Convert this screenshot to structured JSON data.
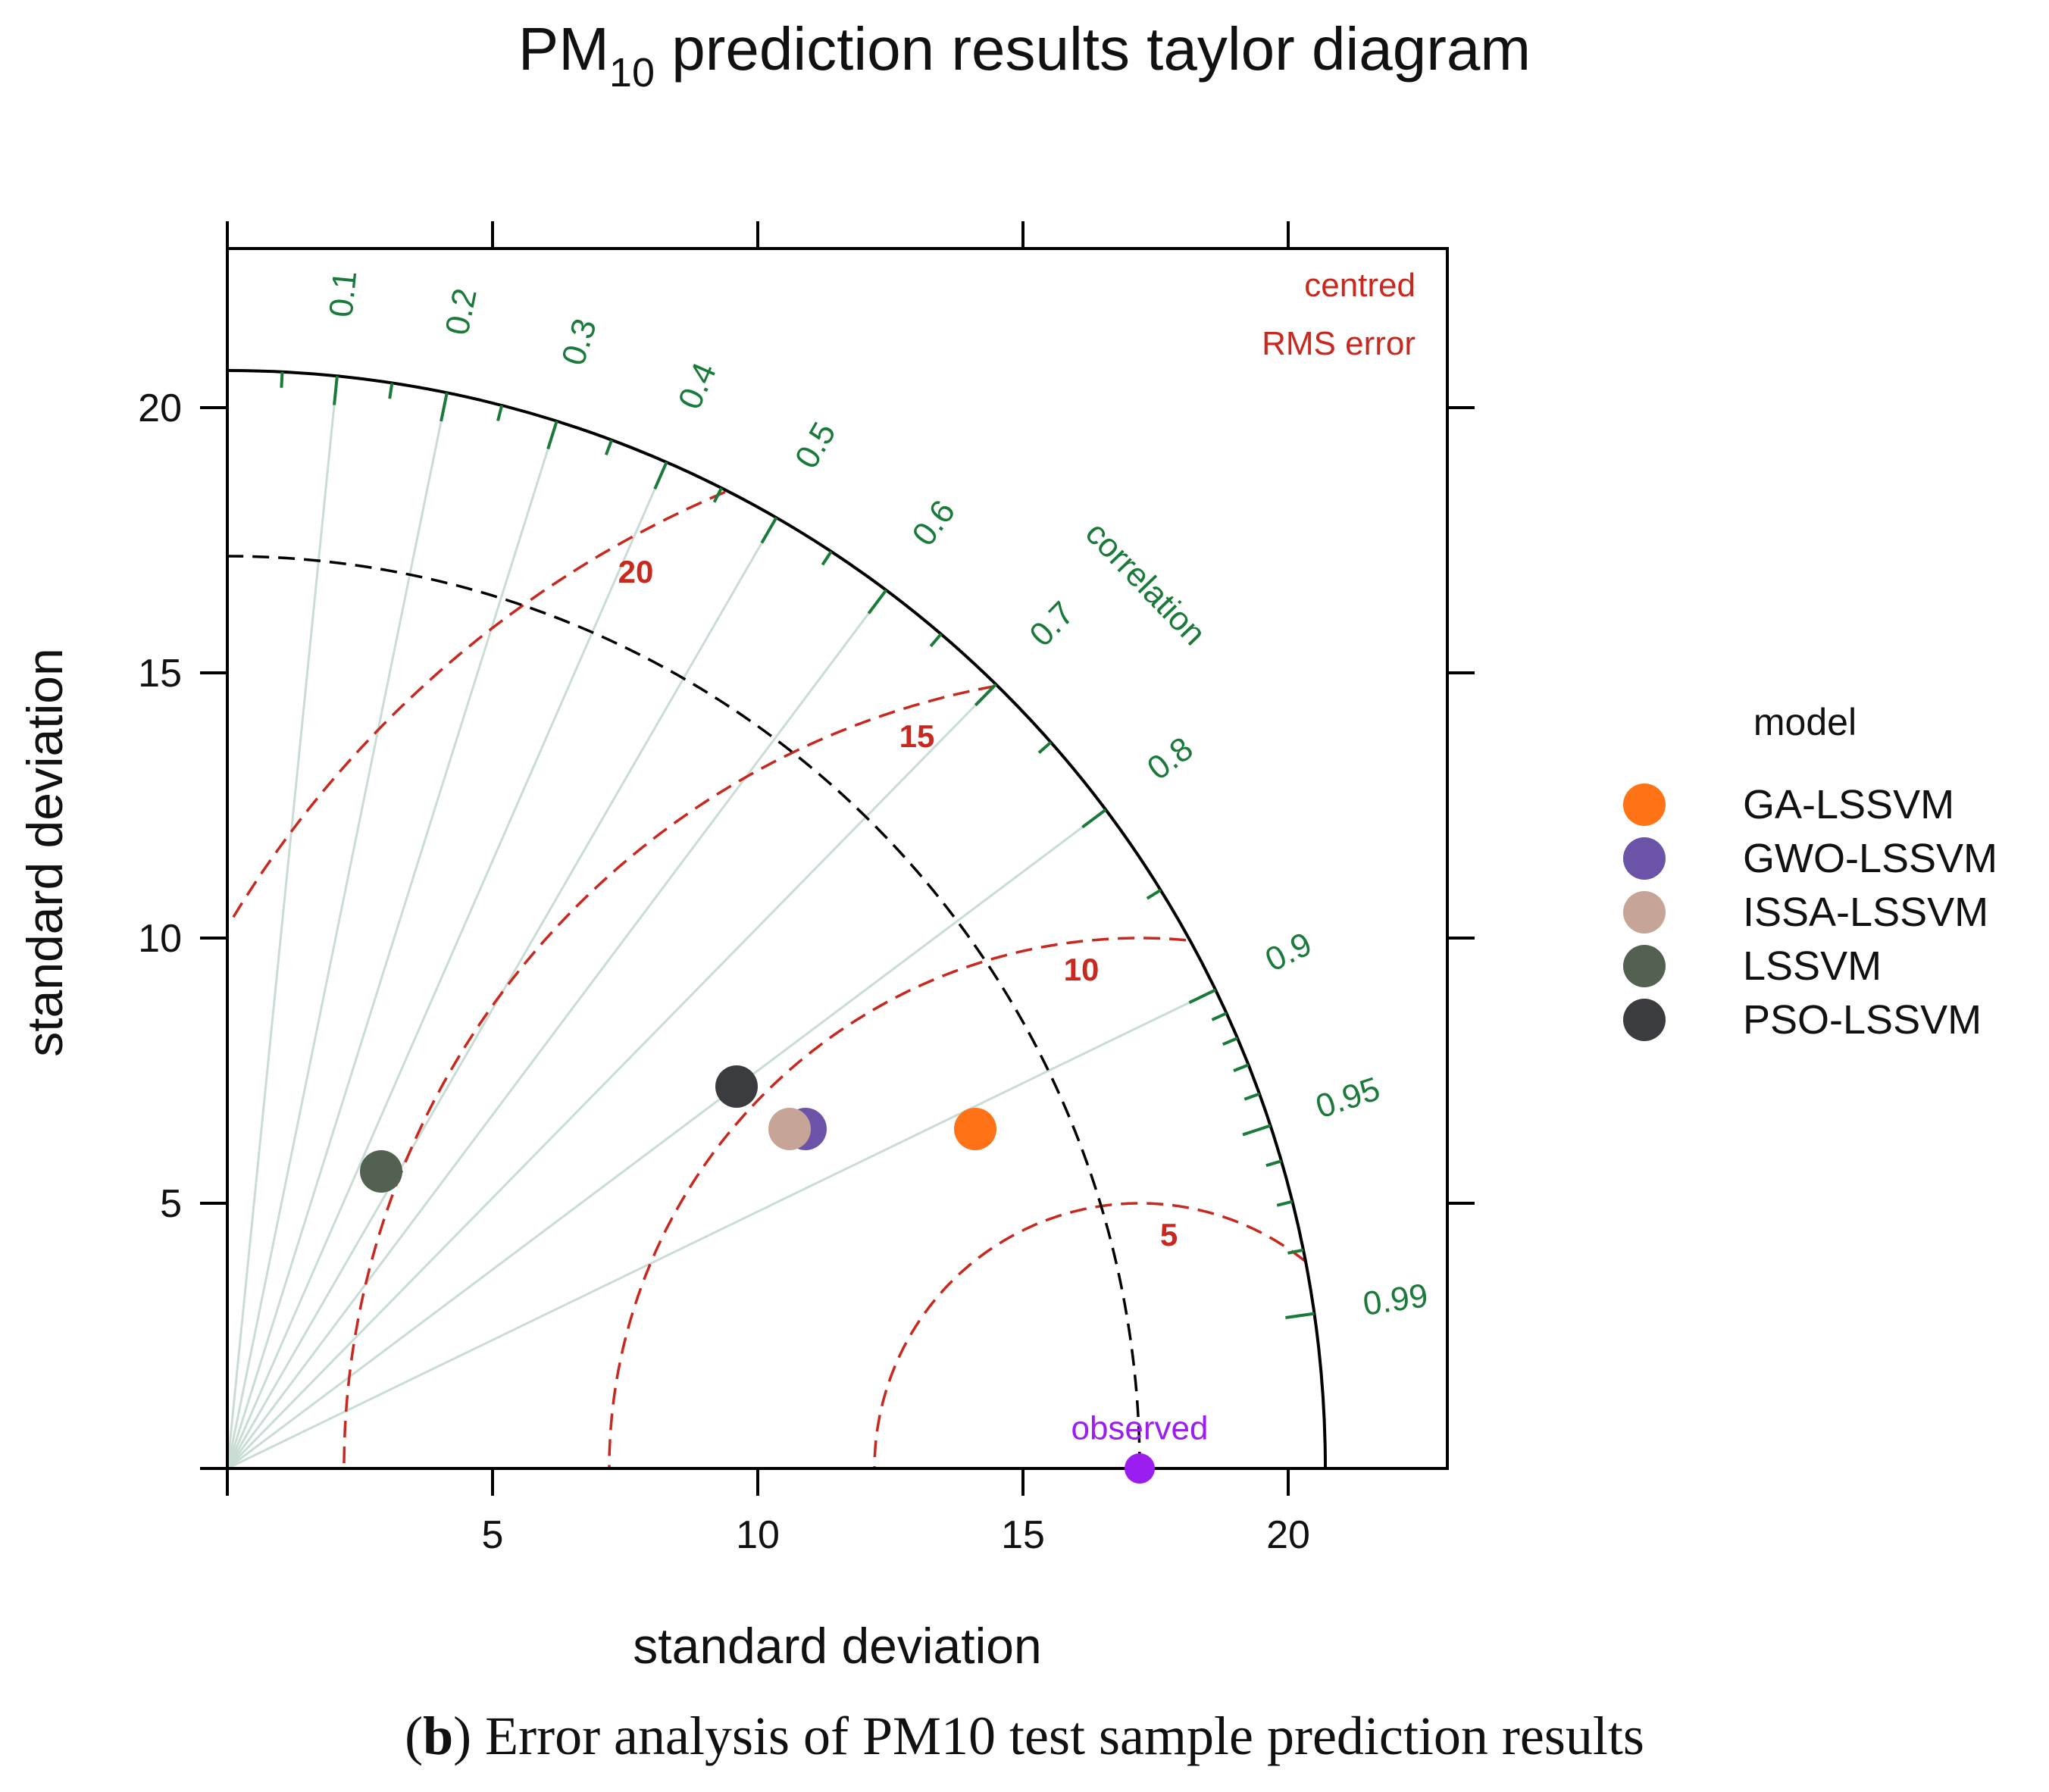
{
  "chart_data": {
    "type": "taylor",
    "title_main": "PM",
    "title_sub": "10",
    "title_rest": " prediction results taylor diagram",
    "xlabel": "standard deviation",
    "ylabel": "standard deviation",
    "xlim": [
      0,
      23
    ],
    "ylim": [
      0,
      23
    ],
    "axis_ticks": [
      5,
      10,
      15,
      20
    ],
    "outer_radius": 20.7,
    "observed": {
      "label": "observed",
      "sd": 17.2,
      "color": "#9B1DF0"
    },
    "correlation_label": "correlation",
    "correlation_ticks": [
      "0.1",
      "0.2",
      "0.3",
      "0.4",
      "0.5",
      "0.6",
      "0.7",
      "0.8",
      "0.9",
      "0.95",
      "0.99"
    ],
    "correlation_lines": [
      0.1,
      0.2,
      0.3,
      0.4,
      0.5,
      0.6,
      0.7,
      0.8,
      0.9
    ],
    "rms_label_line1": "centred",
    "rms_label_line2": "RMS error",
    "rms_contours": [
      "5",
      "10",
      "15",
      "20"
    ],
    "legend_title": "model",
    "series": [
      {
        "name": "GA-LSSVM",
        "x": 14.1,
        "y": 6.4,
        "color": "#FF7316"
      },
      {
        "name": "GWO-LSSVM",
        "x": 10.9,
        "y": 6.4,
        "color": "#6B54A8"
      },
      {
        "name": "ISSA-LSSVM",
        "x": 10.6,
        "y": 6.4,
        "color": "#C6A497"
      },
      {
        "name": "LSSVM",
        "x": 2.9,
        "y": 5.6,
        "color": "#526150"
      },
      {
        "name": "PSO-LSSVM",
        "x": 9.6,
        "y": 7.2,
        "color": "#3A3C3F"
      }
    ],
    "colors": {
      "correlation": "#1A7A3A",
      "rms": "#C8281E",
      "grid": "#C9DDD4",
      "axis": "#000000"
    }
  },
  "caption": {
    "bold": "b",
    "text": " Error analysis of PM10 test sample prediction results"
  }
}
